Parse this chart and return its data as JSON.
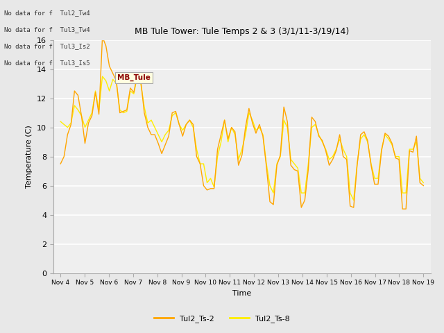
{
  "title": "MB Tule Tower: Tule Temps 2 & 3 (3/1/11-3/19/14)",
  "xlabel": "Time",
  "ylabel": "Temperature (C)",
  "ylim": [
    0,
    16
  ],
  "yticks": [
    0,
    2,
    4,
    6,
    8,
    10,
    12,
    14,
    16
  ],
  "x_labels": [
    "Nov 4",
    "Nov 5",
    "Nov 6",
    "Nov 7",
    "Nov 8",
    "Nov 9",
    "Nov 10",
    "Nov 11",
    "Nov 12",
    "Nov 13",
    "Nov 14",
    "Nov 15",
    "Nov 16",
    "Nov 17",
    "Nov 18",
    "Nov 19"
  ],
  "color_ts2": "#FFA500",
  "color_ts8": "#FFEE00",
  "bg_color": "#E8E8E8",
  "plot_bg": "#EFEFEF",
  "no_data_texts": [
    "No data for f  Tul2_Tw4",
    "No data for f  Tul3_Tw4",
    "No data for f  Tul3_Is2",
    "No data for f  Tul3_Is5"
  ],
  "tooltip_text": "MB_Tule",
  "legend_labels": [
    "Tul2_Ts-2",
    "Tul2_Ts-8"
  ],
  "ts2": [
    7.5,
    8.0,
    9.5,
    10.2,
    12.5,
    12.2,
    10.8,
    8.9,
    10.3,
    10.8,
    12.4,
    10.9,
    16.2,
    15.6,
    14.2,
    13.7,
    13.2,
    11.0,
    11.1,
    11.2,
    12.7,
    12.4,
    13.6,
    13.2,
    11.0,
    10.0,
    9.5,
    9.5,
    8.9,
    8.2,
    8.8,
    9.4,
    11.0,
    11.1,
    10.2,
    9.4,
    10.2,
    10.5,
    10.2,
    8.0,
    7.5,
    6.0,
    5.7,
    5.8,
    5.8,
    8.5,
    9.5,
    10.5,
    9.2,
    10.0,
    9.7,
    7.4,
    8.1,
    10.0,
    11.3,
    10.3,
    9.6,
    10.2,
    9.4,
    7.3,
    4.9,
    4.7,
    7.4,
    8.1,
    11.4,
    10.4,
    7.4,
    7.1,
    7.0,
    4.5,
    5.0,
    7.1,
    10.7,
    10.4,
    9.4,
    9.1,
    8.4,
    7.4,
    7.8,
    8.4,
    9.5,
    8.0,
    7.8,
    4.6,
    4.5,
    7.4,
    9.5,
    9.7,
    9.1,
    7.4,
    6.1,
    6.1,
    8.4,
    9.6,
    9.4,
    8.9,
    7.9,
    7.8,
    4.4,
    4.4,
    8.4,
    8.3,
    9.4,
    6.2,
    6.0
  ],
  "ts8": [
    10.4,
    10.2,
    10.0,
    10.3,
    11.5,
    11.2,
    10.8,
    10.0,
    10.5,
    11.0,
    12.5,
    11.2,
    13.5,
    13.2,
    12.5,
    13.3,
    13.0,
    11.2,
    11.0,
    11.1,
    12.5,
    12.3,
    13.5,
    13.0,
    11.4,
    10.3,
    10.5,
    10.0,
    9.5,
    9.0,
    9.5,
    9.8,
    10.8,
    11.0,
    10.2,
    9.8,
    10.2,
    10.5,
    10.0,
    8.5,
    7.5,
    7.5,
    6.2,
    6.5,
    5.9,
    8.0,
    9.0,
    10.5,
    9.0,
    10.0,
    9.5,
    7.8,
    8.5,
    9.5,
    11.0,
    10.5,
    9.8,
    10.0,
    9.5,
    7.5,
    6.0,
    5.5,
    7.5,
    8.0,
    10.5,
    10.0,
    7.8,
    7.5,
    7.2,
    5.5,
    5.5,
    7.5,
    10.0,
    10.2,
    9.5,
    9.0,
    8.5,
    7.8,
    8.0,
    8.5,
    9.2,
    8.5,
    8.0,
    5.5,
    5.0,
    7.5,
    9.2,
    9.5,
    9.0,
    7.5,
    6.5,
    6.5,
    8.5,
    9.5,
    9.2,
    8.8,
    8.0,
    8.0,
    5.5,
    5.5,
    8.5,
    8.5,
    9.0,
    6.5,
    6.2
  ]
}
